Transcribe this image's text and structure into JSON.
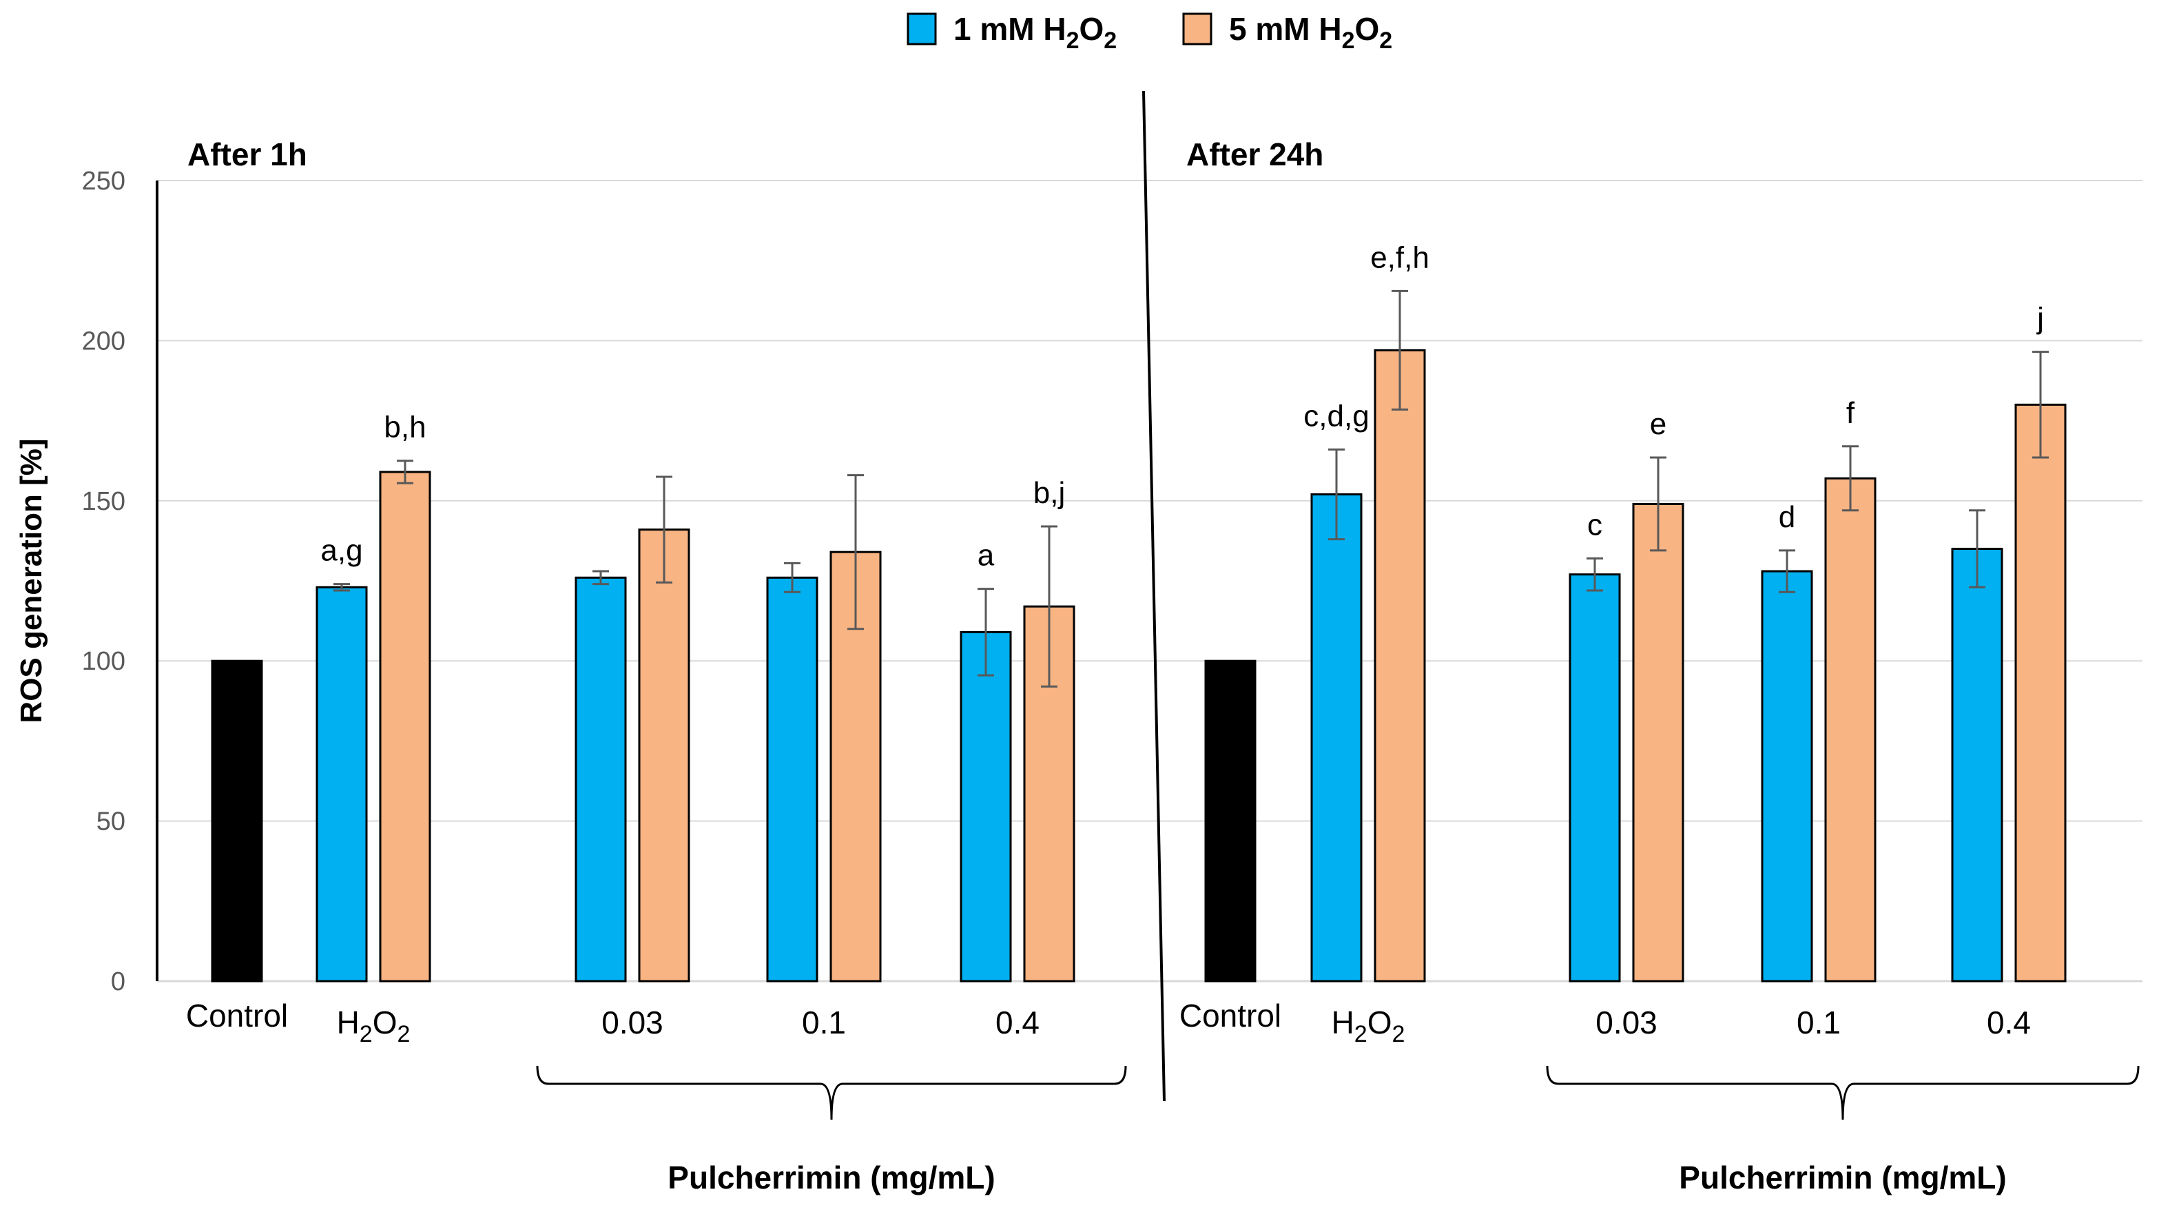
{
  "chart_data": {
    "type": "bar",
    "ylabel": "ROS generation [%]",
    "ylim": [
      0,
      250
    ],
    "yticks": [
      0,
      50,
      100,
      150,
      200,
      250
    ],
    "grid": true,
    "legend": {
      "placement": "top-center",
      "entries": [
        {
          "prefix": "1 mM H",
          "sub": "2",
          "mid": "O",
          "sub2": "2",
          "color": "#00B0F0"
        },
        {
          "prefix": "5 mM H",
          "sub": "2",
          "mid": "O",
          "sub2": "2",
          "color": "#F8B483"
        }
      ]
    },
    "colors": {
      "control": "#000000",
      "s1": "#00B0F0",
      "s2": "#F8B483",
      "error": "#595959"
    },
    "panels": [
      {
        "title": "After 1h",
        "xlabel": "Pulcherrimin (mg/mL)",
        "groups": [
          {
            "label": "Control",
            "bars": [
              {
                "series": "control",
                "value": 100,
                "err": 0.5,
                "letter": ""
              }
            ]
          },
          {
            "label_main": "H",
            "label_sub": "2",
            "label_main2": "O",
            "label_sub2": "2",
            "bars": [
              {
                "series": "s1",
                "value": 123,
                "err": 1,
                "letter": "a,g"
              },
              {
                "series": "s2",
                "value": 159,
                "err": 3.5,
                "letter": "b,h"
              }
            ]
          },
          {
            "label": "0.03",
            "bars": [
              {
                "series": "s1",
                "value": 126,
                "err": 2,
                "letter": ""
              },
              {
                "series": "s2",
                "value": 141,
                "err": 16.5,
                "letter": ""
              }
            ]
          },
          {
            "label": "0.1",
            "bars": [
              {
                "series": "s1",
                "value": 126,
                "err": 4.5,
                "letter": ""
              },
              {
                "series": "s2",
                "value": 134,
                "err": 24,
                "letter": ""
              }
            ]
          },
          {
            "label": "0.4",
            "bars": [
              {
                "series": "s1",
                "value": 109,
                "err": 13.5,
                "letter": "a"
              },
              {
                "series": "s2",
                "value": 117,
                "err": 25,
                "letter": "b,j"
              }
            ]
          }
        ]
      },
      {
        "title": "After 24h",
        "xlabel": "Pulcherrimin (mg/mL)",
        "groups": [
          {
            "label": "Control",
            "bars": [
              {
                "series": "control",
                "value": 100,
                "err": 0.5,
                "letter": ""
              }
            ]
          },
          {
            "label_main": "H",
            "label_sub": "2",
            "label_main2": "O",
            "label_sub2": "2",
            "bars": [
              {
                "series": "s1",
                "value": 152,
                "err": 14,
                "letter": "c,d,g"
              },
              {
                "series": "s2",
                "value": 197,
                "err": 18.5,
                "letter": "e,f,h"
              }
            ]
          },
          {
            "label": "0.03",
            "bars": [
              {
                "series": "s1",
                "value": 127,
                "err": 5,
                "letter": "c"
              },
              {
                "series": "s2",
                "value": 149,
                "err": 14.5,
                "letter": "e"
              }
            ]
          },
          {
            "label": "0.1",
            "bars": [
              {
                "series": "s1",
                "value": 128,
                "err": 6.5,
                "letter": "d"
              },
              {
                "series": "s2",
                "value": 157,
                "err": 10,
                "letter": "f"
              }
            ]
          },
          {
            "label": "0.4",
            "bars": [
              {
                "series": "s1",
                "value": 135,
                "err": 12,
                "letter": ""
              },
              {
                "series": "s2",
                "value": 180,
                "err": 16.5,
                "letter": "j"
              }
            ]
          }
        ]
      }
    ]
  }
}
